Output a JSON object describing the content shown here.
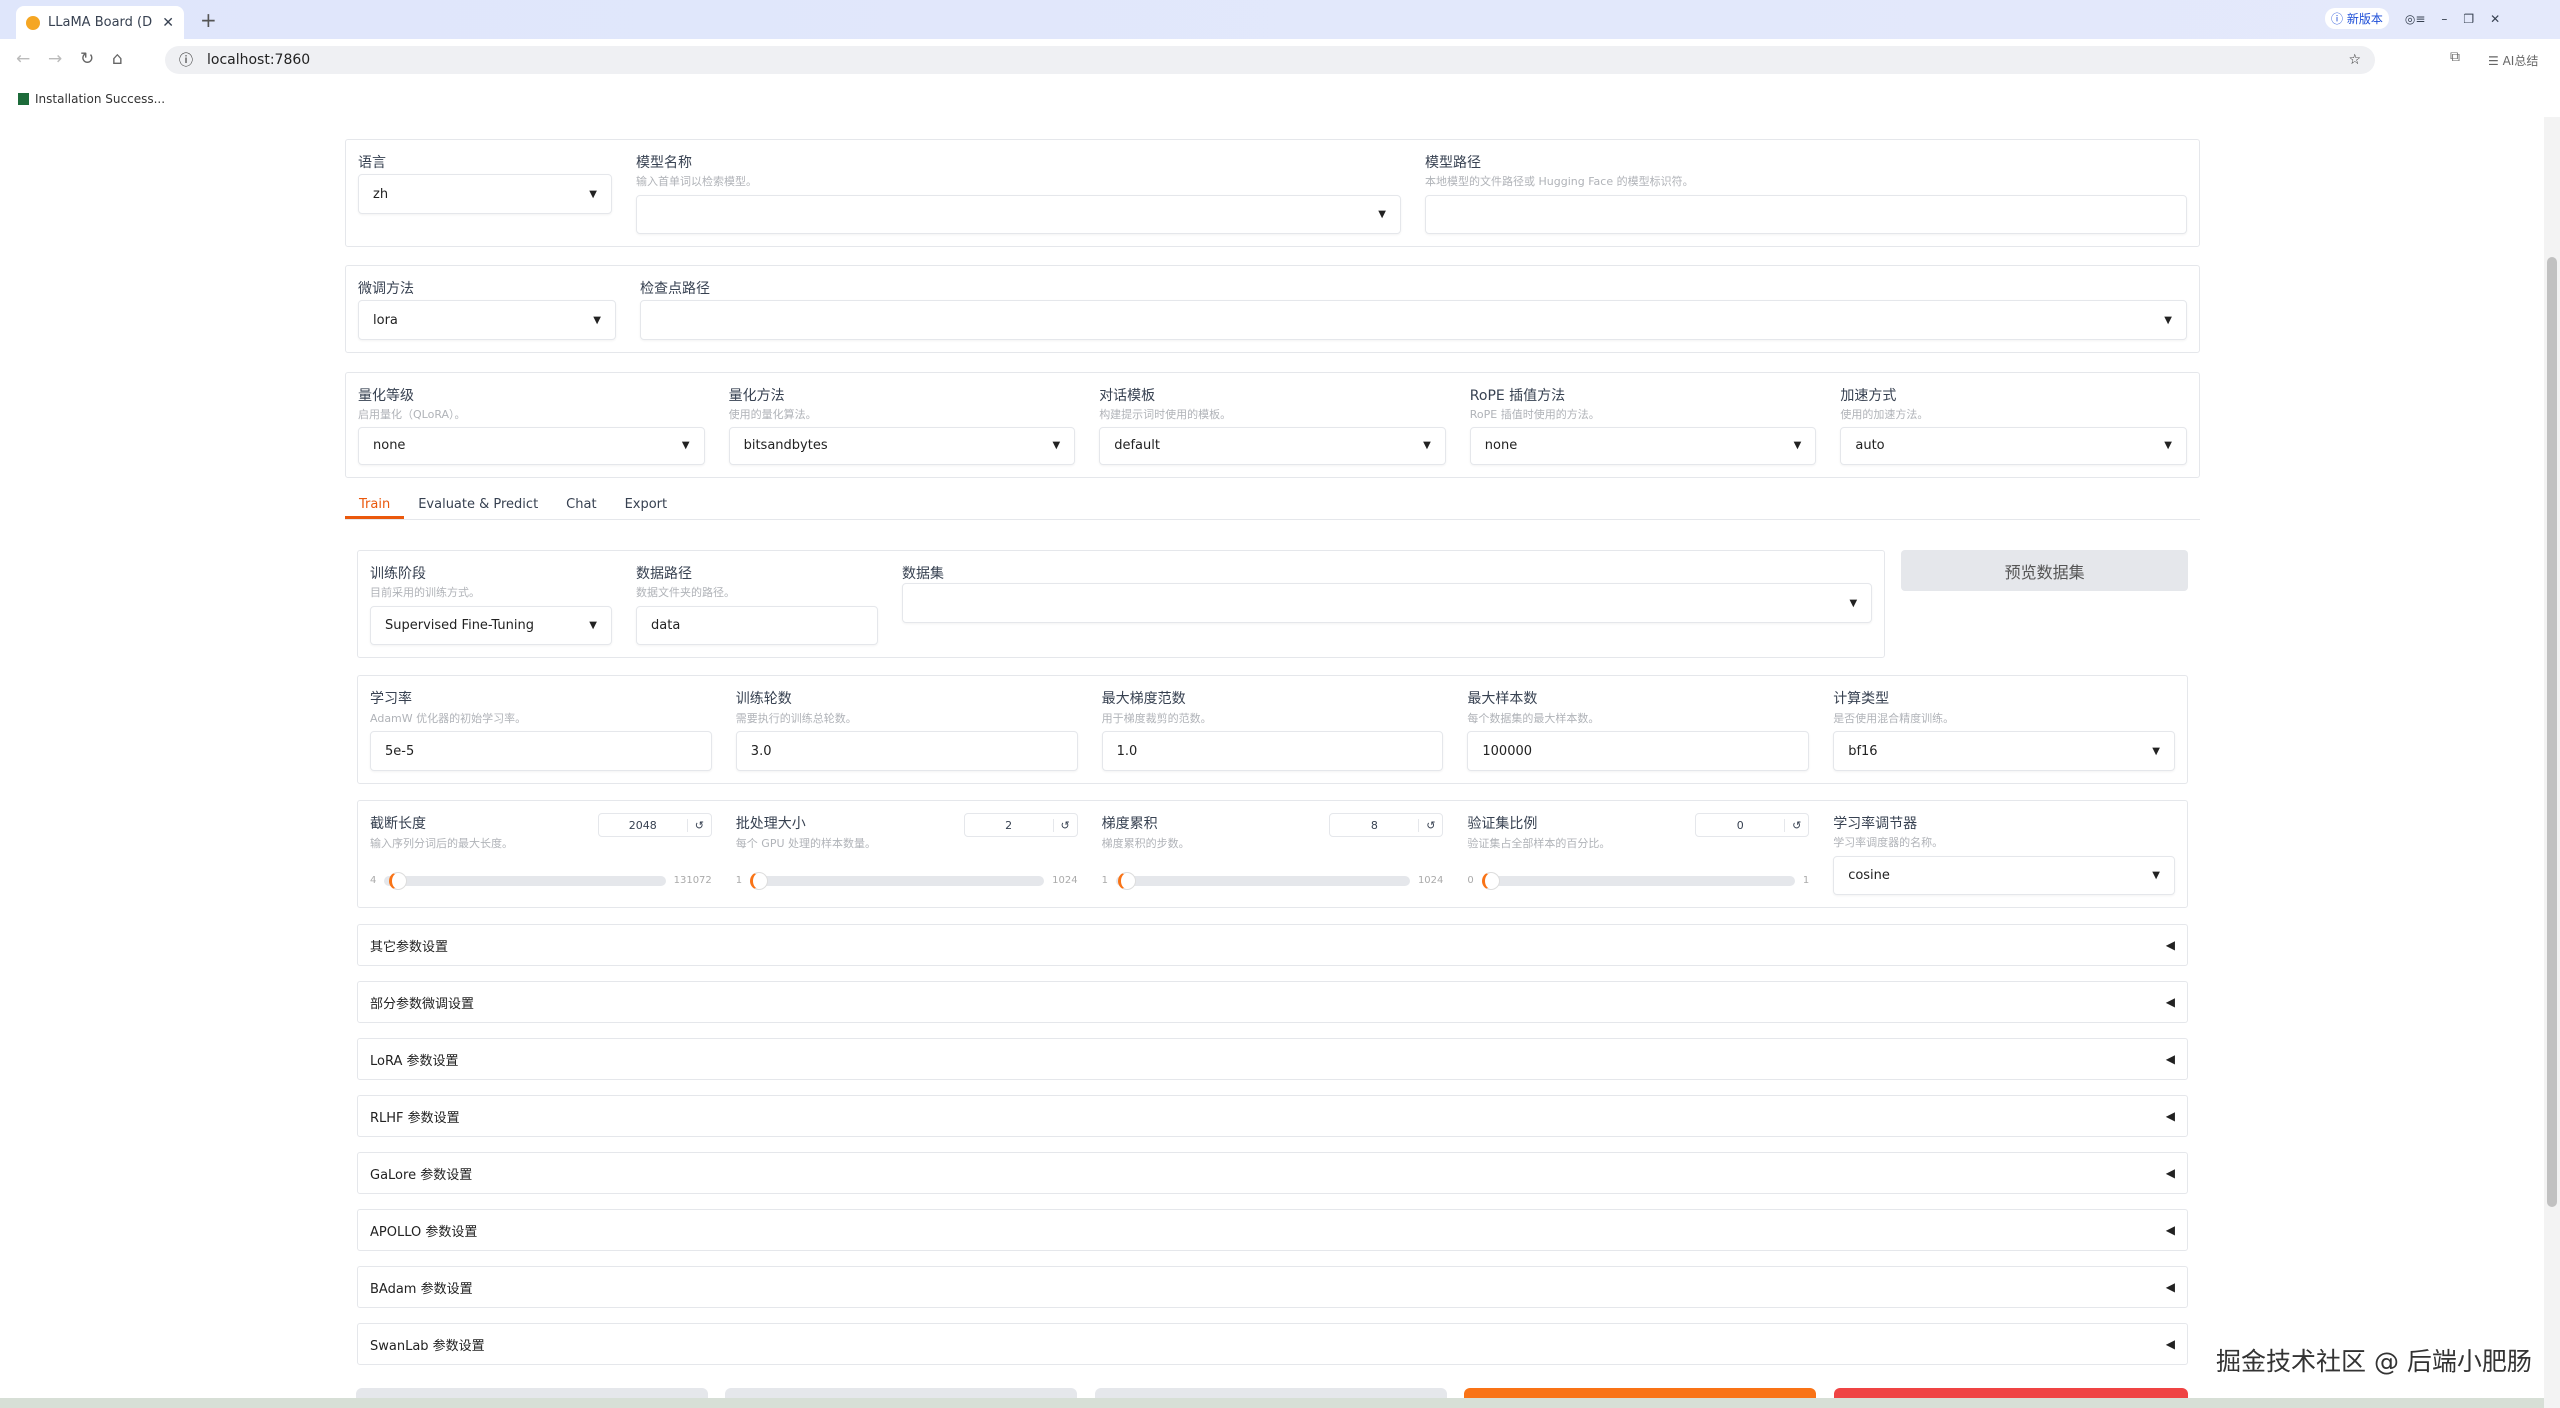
{
  "browser": {
    "tab_title": "LLaMA Board (D",
    "url": "localhost:7860",
    "new_version": "新版本",
    "ai_label": "AI总结",
    "bookmark": "Installation Success..."
  },
  "top": {
    "lang": {
      "label": "语言",
      "value": "zh"
    },
    "model_name": {
      "label": "模型名称",
      "desc": "输入首单词以检索模型。",
      "value": ""
    },
    "model_path": {
      "label": "模型路径",
      "desc": "本地模型的文件路径或 Hugging Face 的模型标识符。",
      "value": ""
    },
    "finetune": {
      "label": "微调方法",
      "value": "lora"
    },
    "checkpoint": {
      "label": "检查点路径",
      "value": ""
    },
    "quant_bit": {
      "label": "量化等级",
      "desc": "启用量化（QLoRA）。",
      "value": "none"
    },
    "quant_method": {
      "label": "量化方法",
      "desc": "使用的量化算法。",
      "value": "bitsandbytes"
    },
    "template": {
      "label": "对话模板",
      "desc": "构建提示词时使用的模板。",
      "value": "default"
    },
    "rope": {
      "label": "RoPE 插值方法",
      "desc": "RoPE 插值时使用的方法。",
      "value": "none"
    },
    "booster": {
      "label": "加速方式",
      "desc": "使用的加速方法。",
      "value": "auto"
    }
  },
  "tabs": [
    "Train",
    "Evaluate & Predict",
    "Chat",
    "Export"
  ],
  "train": {
    "stage": {
      "label": "训练阶段",
      "desc": "目前采用的训练方式。",
      "value": "Supervised Fine-Tuning"
    },
    "dataset_dir": {
      "label": "数据路径",
      "desc": "数据文件夹的路径。",
      "value": "data"
    },
    "dataset": {
      "label": "数据集",
      "value": ""
    },
    "preview": "预览数据集",
    "lr": {
      "label": "学习率",
      "desc": "AdamW 优化器的初始学习率。",
      "value": "5e-5"
    },
    "epochs": {
      "label": "训练轮数",
      "desc": "需要执行的训练总轮数。",
      "value": "3.0"
    },
    "max_grad": {
      "label": "最大梯度范数",
      "desc": "用于梯度裁剪的范数。",
      "value": "1.0"
    },
    "max_samples": {
      "label": "最大样本数",
      "desc": "每个数据集的最大样本数。",
      "value": "100000"
    },
    "compute": {
      "label": "计算类型",
      "desc": "是否使用混合精度训练。",
      "value": "bf16"
    },
    "cutoff": {
      "label": "截断长度",
      "desc": "输入序列分词后的最大长度。",
      "value": "2048",
      "min": "4",
      "max": "131072",
      "fraction": 0.0156
    },
    "batch": {
      "label": "批处理大小",
      "desc": "每个 GPU 处理的样本数量。",
      "value": "2",
      "min": "1",
      "max": "1024",
      "fraction": 0.001
    },
    "grad_acc": {
      "label": "梯度累积",
      "desc": "梯度累积的步数。",
      "value": "8",
      "min": "1",
      "max": "1024",
      "fraction": 0.007
    },
    "val": {
      "label": "验证集比例",
      "desc": "验证集占全部样本的百分比。",
      "value": "0",
      "min": "0",
      "max": "1",
      "fraction": 0
    },
    "scheduler": {
      "label": "学习率调节器",
      "desc": "学习率调度器的名称。",
      "value": "cosine"
    }
  },
  "accordions": [
    "其它参数设置",
    "部分参数微调设置",
    "LoRA 参数设置",
    "RLHF 参数设置",
    "GaLore 参数设置",
    "APOLLO 参数设置",
    "BAdam 参数设置",
    "SwanLab 参数设置"
  ],
  "watermark": "掘金技术社区 @ 后端小肥肠",
  "colors": {
    "accent": "#ea580c",
    "stop": "#ef4444"
  }
}
